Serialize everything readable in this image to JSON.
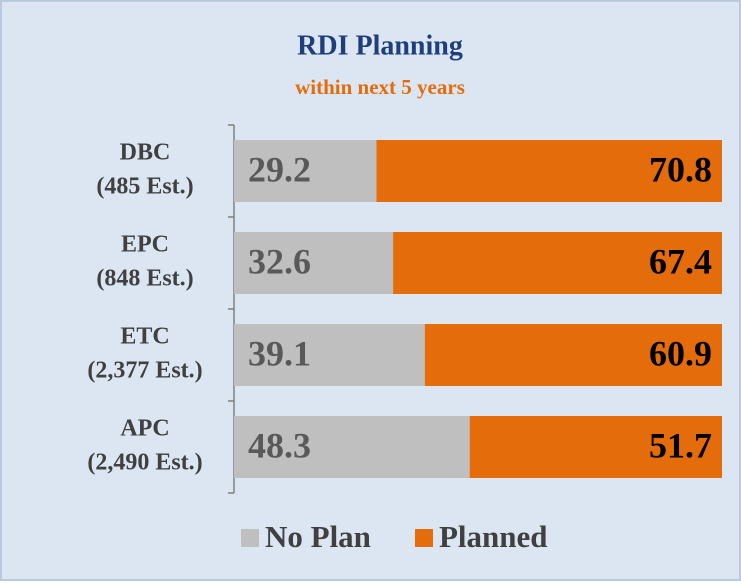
{
  "chart_data": {
    "type": "stacked_bar_horizontal",
    "title": "RDI Planning",
    "subtitle": "within next 5 years",
    "categories": [
      [
        "DBC",
        "(485 Est.)"
      ],
      [
        "EPC",
        "(848 Est.)"
      ],
      [
        "ETC",
        "(2,377 Est.)"
      ],
      [
        "APC",
        "(2,490 Est.)"
      ]
    ],
    "series": [
      {
        "name": "No Plan",
        "color": "#bfbfbf",
        "values": [
          29.2,
          32.6,
          39.1,
          48.3
        ]
      },
      {
        "name": "Planned",
        "color": "#e46c0a",
        "values": [
          70.8,
          67.4,
          60.9,
          51.7
        ]
      }
    ],
    "legend": "bottom"
  }
}
